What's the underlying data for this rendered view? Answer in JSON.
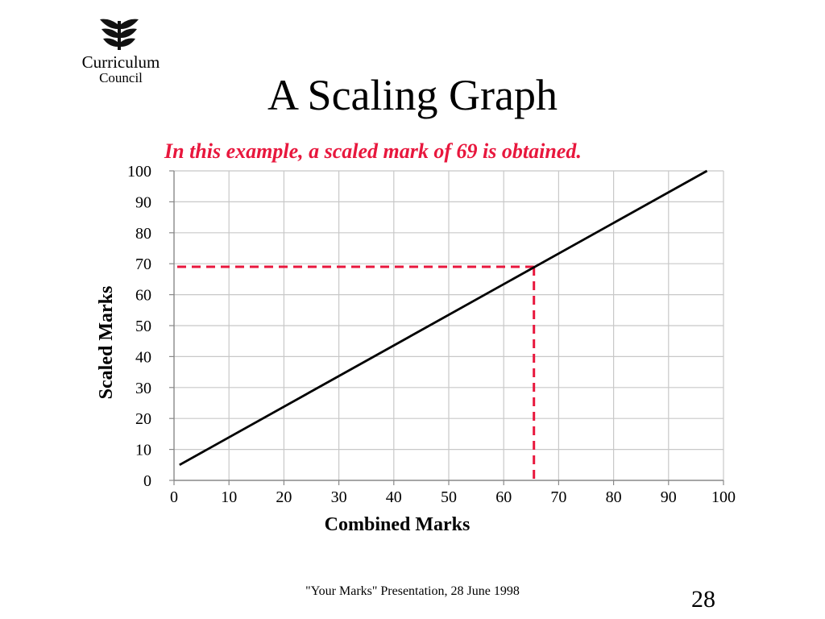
{
  "logo": {
    "icon": "leaf-icon",
    "line1": "Curriculum",
    "line2": "Council"
  },
  "title": "A Scaling Graph",
  "subtitle": "In this example, a scaled mark of 69  is obtained.",
  "chart_data": {
    "type": "line",
    "xlabel": "Combined Marks",
    "ylabel": "Scaled Marks",
    "xlim": [
      0,
      100
    ],
    "ylim": [
      0,
      100
    ],
    "x_ticks": [
      "0",
      "10",
      "20",
      "30",
      "40",
      "50",
      "60",
      "70",
      "80",
      "90",
      "100"
    ],
    "y_ticks": [
      "0",
      "10",
      "20",
      "30",
      "40",
      "50",
      "60",
      "70",
      "80",
      "90",
      "100"
    ],
    "grid": true,
    "series": [
      {
        "x": [
          1,
          97
        ],
        "y": [
          5,
          100
        ],
        "color": "#000000"
      }
    ],
    "annotation": {
      "x": 65.5,
      "y": 69,
      "color": "#e8173d",
      "style": "dashed"
    }
  },
  "footer": "\"Your Marks\" Presentation, 28 June 1998",
  "page_number": "28"
}
